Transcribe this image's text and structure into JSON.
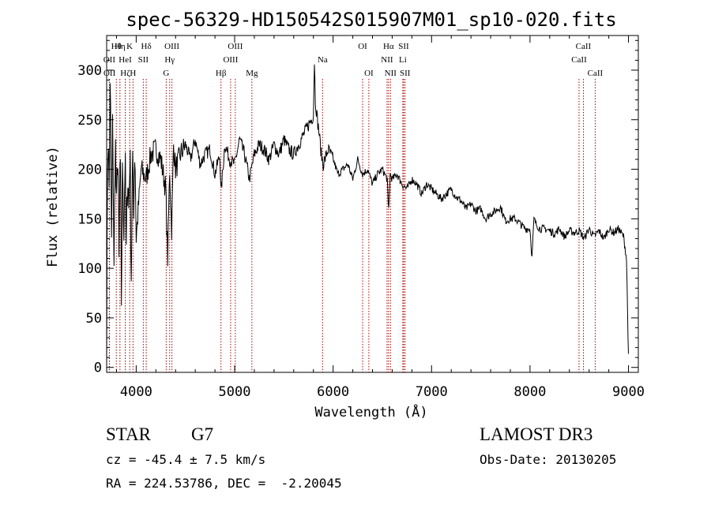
{
  "chart_data": {
    "type": "line",
    "title": "spec-56329-HD150542S015907M01_sp10-020.fits",
    "xlabel": "Wavelength (Å)",
    "ylabel": "Flux (relative)",
    "xlim": [
      3700,
      9100
    ],
    "ylim": [
      -5,
      335
    ],
    "xticks": [
      4000,
      5000,
      6000,
      7000,
      8000,
      9000
    ],
    "yticks": [
      0,
      50,
      100,
      150,
      200,
      250,
      300
    ],
    "line_color": "#000000",
    "marker_color": "#aa0000",
    "series": [
      {
        "name": "flux",
        "x": [
          3700,
          3712,
          3725,
          3737,
          3750,
          3762,
          3775,
          3787,
          3800,
          3812,
          3825,
          3837,
          3850,
          3862,
          3875,
          3887,
          3900,
          3912,
          3925,
          3937,
          3950,
          3962,
          3975,
          3987,
          4000,
          4050,
          4100,
          4150,
          4200,
          4250,
          4300,
          4320,
          4340,
          4360,
          4380,
          4400,
          4450,
          4500,
          4550,
          4600,
          4650,
          4700,
          4750,
          4800,
          4850,
          4861,
          4900,
          4950,
          5000,
          5050,
          5100,
          5150,
          5200,
          5250,
          5300,
          5350,
          5400,
          5450,
          5500,
          5550,
          5600,
          5650,
          5700,
          5750,
          5780,
          5800,
          5810,
          5820,
          5840,
          5860,
          5880,
          5900,
          5950,
          6000,
          6050,
          6100,
          6150,
          6200,
          6250,
          6300,
          6350,
          6400,
          6450,
          6500,
          6550,
          6563,
          6580,
          6600,
          6650,
          6700,
          6750,
          6800,
          6850,
          6900,
          6950,
          7000,
          7050,
          7100,
          7150,
          7200,
          7250,
          7300,
          7350,
          7400,
          7450,
          7500,
          7550,
          7600,
          7650,
          7700,
          7750,
          7800,
          7850,
          7900,
          7950,
          8000,
          8020,
          8040,
          8060,
          8100,
          8150,
          8200,
          8250,
          8300,
          8350,
          8400,
          8450,
          8500,
          8550,
          8600,
          8650,
          8700,
          8750,
          8800,
          8850,
          8900,
          8950,
          8980,
          9000
        ],
        "y": [
          20,
          250,
          180,
          290,
          120,
          260,
          90,
          240,
          150,
          230,
          100,
          220,
          70,
          210,
          140,
          215,
          110,
          205,
          160,
          225,
          95,
          200,
          170,
          230,
          130,
          200,
          190,
          215,
          220,
          210,
          180,
          110,
          200,
          140,
          225,
          200,
          215,
          225,
          210,
          230,
          205,
          215,
          220,
          195,
          215,
          175,
          225,
          210,
          205,
          230,
          215,
          190,
          215,
          225,
          220,
          210,
          225,
          215,
          230,
          220,
          215,
          225,
          235,
          245,
          250,
          255,
          310,
          270,
          250,
          235,
          215,
          205,
          220,
          210,
          195,
          200,
          205,
          190,
          210,
          195,
          200,
          185,
          195,
          200,
          190,
          155,
          195,
          190,
          195,
          185,
          180,
          190,
          185,
          175,
          185,
          180,
          175,
          170,
          175,
          180,
          172,
          168,
          160,
          165,
          158,
          160,
          150,
          155,
          158,
          162,
          148,
          150,
          150,
          145,
          140,
          140,
          110,
          150,
          145,
          140,
          140,
          138,
          135,
          140,
          132,
          138,
          136,
          138,
          130,
          140,
          132,
          138,
          130,
          140,
          136,
          140,
          132,
          110,
          10
        ]
      }
    ],
    "lines": [
      {
        "name": "OII",
        "wl": 3727,
        "row": 2
      },
      {
        "name": "OII",
        "wl": 3729,
        "row": 4
      },
      {
        "name": "Hθ",
        "wl": 3798,
        "row": 1
      },
      {
        "name": "Hη",
        "wl": 3835,
        "row": 1
      },
      {
        "name": "HeI",
        "wl": 3889,
        "row": 2
      },
      {
        "name": "Hζ",
        "wl": 3889,
        "row": 4
      },
      {
        "name": "K",
        "wl": 3934,
        "row": 1
      },
      {
        "name": "H",
        "wl": 3968,
        "row": 4
      },
      {
        "name": "Hδ",
        "wl": 4102,
        "row": 1
      },
      {
        "name": "SII",
        "wl": 4072,
        "row": 2
      },
      {
        "name": "OIII",
        "wl": 4363,
        "row": 1
      },
      {
        "name": "Hγ",
        "wl": 4340,
        "row": 2
      },
      {
        "name": "G",
        "wl": 4305,
        "row": 4
      },
      {
        "name": "Hβ",
        "wl": 4861,
        "row": 4
      },
      {
        "name": "OIII",
        "wl": 5007,
        "row": 1
      },
      {
        "name": "OIII",
        "wl": 4959,
        "row": 2
      },
      {
        "name": "Mg",
        "wl": 5175,
        "row": 4
      },
      {
        "name": "Na",
        "wl": 5893,
        "row": 2
      },
      {
        "name": "OI",
        "wl": 6300,
        "row": 1
      },
      {
        "name": "OI",
        "wl": 6363,
        "row": 4
      },
      {
        "name": "Hα",
        "wl": 6563,
        "row": 1
      },
      {
        "name": "SII",
        "wl": 6717,
        "row": 1
      },
      {
        "name": "NII",
        "wl": 6548,
        "row": 2
      },
      {
        "name": "Li",
        "wl": 6708,
        "row": 2
      },
      {
        "name": "NII",
        "wl": 6583,
        "row": 4
      },
      {
        "name": "SII",
        "wl": 6731,
        "row": 4
      },
      {
        "name": "CaII",
        "wl": 8542,
        "row": 1
      },
      {
        "name": "CaII",
        "wl": 8498,
        "row": 2
      },
      {
        "name": "CaII",
        "wl": 8662,
        "row": 4
      }
    ]
  },
  "info": {
    "object_class": "STAR",
    "subclass": "G7",
    "cz_line": "cz = -45.4 ± 7.5 km/s",
    "radec_line": "RA = 224.53786, DEC =  -2.20045",
    "survey": "LAMOST DR3",
    "obs_date_line": "Obs-Date: 20130205"
  }
}
